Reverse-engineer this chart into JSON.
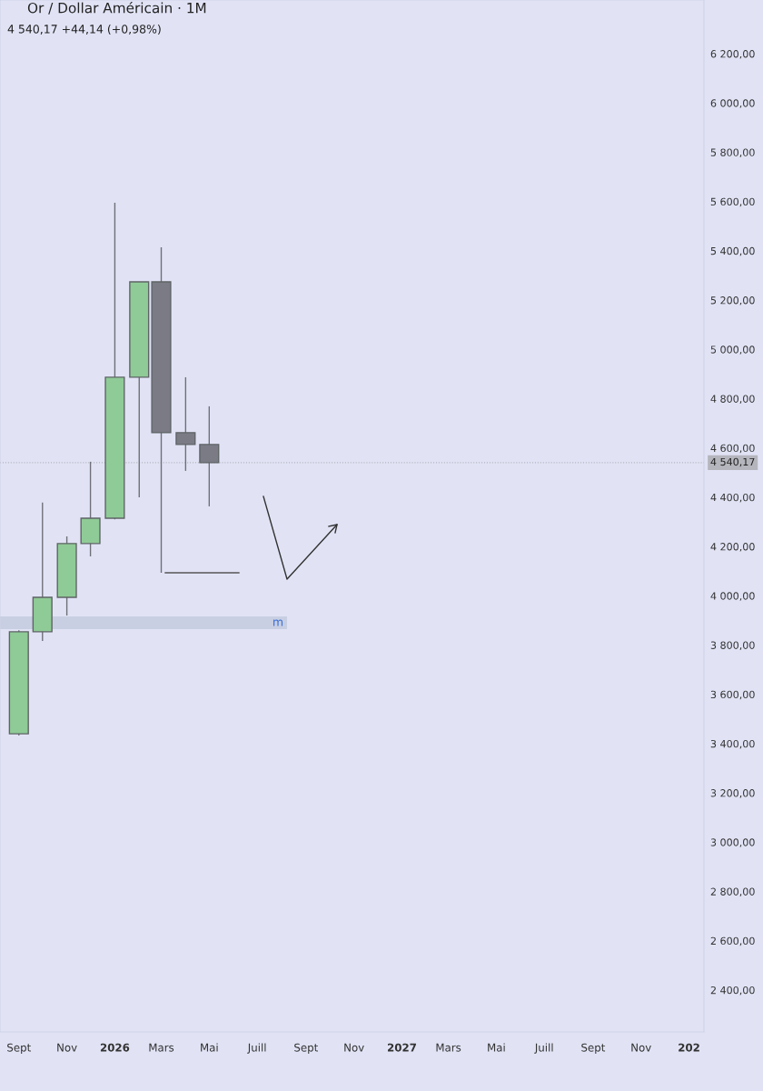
{
  "chart_data": {
    "type": "candlestick",
    "title": "Or / Dollar Américain · 1M",
    "subtitle": "4 540,17 +44,14 (+0,98%)",
    "x": [
      "2025-09",
      "2025-10",
      "2025-11",
      "2025-12",
      "2026-01",
      "2026-02",
      "2026-03",
      "2026-04",
      "2026-05"
    ],
    "ohlc": [
      [
        3440,
        3860,
        3433,
        3854
      ],
      [
        3854,
        4378,
        3817,
        3994
      ],
      [
        3994,
        4241,
        3920,
        4212
      ],
      [
        4212,
        4544,
        4160,
        4315
      ],
      [
        4315,
        5595,
        4310,
        4887
      ],
      [
        4887,
        5274,
        4400,
        5274
      ],
      [
        5274,
        5414,
        4093,
        4662
      ],
      [
        4662,
        4887,
        4507,
        4614
      ],
      [
        4614,
        4769,
        4363,
        4540.17
      ]
    ],
    "colors": [
      "#8fcb96",
      "#8fcb96",
      "#8fcb96",
      "#8fcb96",
      "#8fcb96",
      "#8fcb96",
      "#7b7b86",
      "#7b7b86",
      "#7b7b86"
    ],
    "ylim": [
      2230,
      6418
    ],
    "yticks": [
      {
        "value": 2400,
        "label": "2 400,00"
      },
      {
        "value": 2600,
        "label": "2 600,00"
      },
      {
        "value": 2800,
        "label": "2 800,00"
      },
      {
        "value": 3000,
        "label": "3 000,00"
      },
      {
        "value": 3200,
        "label": "3 200,00"
      },
      {
        "value": 3400,
        "label": "3 400,00"
      },
      {
        "value": 3600,
        "label": "3 600,00"
      },
      {
        "value": 3800,
        "label": "3 800,00"
      },
      {
        "value": 4000,
        "label": "4 000,00"
      },
      {
        "value": 4200,
        "label": "4 200,00"
      },
      {
        "value": 4400,
        "label": "4 400,00"
      },
      {
        "value": 4600,
        "label": "4 600,00"
      },
      {
        "value": 4800,
        "label": "4 800,00"
      },
      {
        "value": 5000,
        "label": "5 000,00"
      },
      {
        "value": 5200,
        "label": "5 200,00"
      },
      {
        "value": 5400,
        "label": "5 400,00"
      },
      {
        "value": 5600,
        "label": "5 600,00"
      },
      {
        "value": 5800,
        "label": "5 800,00"
      },
      {
        "value": 6000,
        "label": "6 000,00"
      },
      {
        "value": 6200,
        "label": "6 200,00"
      }
    ],
    "xlim": [
      "2025-08-08",
      "2028-01-20"
    ],
    "xticks": [
      {
        "value": "2025-09-01",
        "label": "Sept"
      },
      {
        "value": "2025-11-01",
        "label": "Nov"
      },
      {
        "value": "2026-01-01",
        "label": "2026"
      },
      {
        "value": "2026-03-01",
        "label": "Mars"
      },
      {
        "value": "2026-05-01",
        "label": "Mai"
      },
      {
        "value": "2026-07-01",
        "label": "Juill"
      },
      {
        "value": "2026-09-01",
        "label": "Sept"
      },
      {
        "value": "2026-11-01",
        "label": "Nov"
      },
      {
        "value": "2027-01-01",
        "label": "2027"
      },
      {
        "value": "2027-03-01",
        "label": "Mars"
      },
      {
        "value": "2027-05-01",
        "label": "Mai"
      },
      {
        "value": "2027-07-01",
        "label": "Juill"
      },
      {
        "value": "2027-09-01",
        "label": "Sept"
      },
      {
        "value": "2027-11-01",
        "label": "Nov"
      },
      {
        "value": "2028-01-01",
        "label": "202"
      }
    ],
    "ref_lines": [
      {
        "axis": "y",
        "value": 4540.17,
        "label": "4 540,17",
        "color": "#b5b5bd",
        "line_style": "dotted"
      }
    ],
    "bands": [
      {
        "axis": "y",
        "from": 3865,
        "to": 3916,
        "label": "m",
        "color": "#c8cfe2"
      }
    ]
  }
}
